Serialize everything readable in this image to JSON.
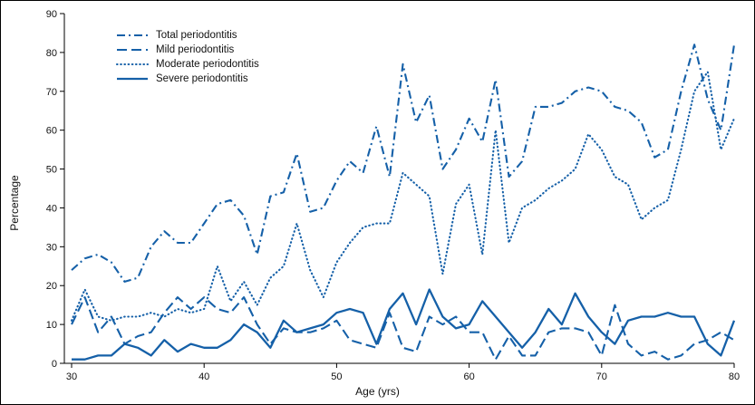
{
  "figure": {
    "background": "#ffffff",
    "border_color": "#000000"
  },
  "chart_data": {
    "type": "line",
    "title": "",
    "xlabel": "Age (yrs)",
    "ylabel": "Percentage",
    "xlim": [
      30,
      80
    ],
    "ylim": [
      0,
      90
    ],
    "x_start": 30,
    "x_step": 1,
    "x_ticks": [
      30,
      40,
      50,
      60,
      70,
      80
    ],
    "y_ticks": [
      0,
      10,
      20,
      30,
      40,
      50,
      60,
      70,
      80,
      90
    ],
    "grid": false,
    "legend_position": "upper-left-inside",
    "color": "#1560a8",
    "series": [
      {
        "key": "total",
        "name": "Total periodontitis",
        "line_style": "dashdot",
        "values": [
          24,
          27,
          28,
          26,
          21,
          22,
          30,
          34,
          31,
          31,
          36,
          41,
          42,
          38,
          28,
          43,
          44,
          54,
          39,
          40,
          47,
          52,
          49,
          61,
          48,
          77,
          62,
          69,
          50,
          55,
          63,
          57,
          73,
          48,
          52,
          66,
          66,
          67,
          70,
          71,
          70,
          66,
          65,
          62,
          53,
          55,
          70,
          82,
          68,
          60,
          82
        ]
      },
      {
        "key": "mild",
        "name": "Mild periodontitis",
        "line_style": "dash",
        "values": [
          10,
          17,
          8,
          12,
          5,
          7,
          8,
          13,
          17,
          14,
          17,
          14,
          13,
          17,
          10,
          5,
          9,
          8,
          8,
          9,
          11,
          6,
          5,
          4,
          13,
          4,
          3,
          12,
          10,
          12,
          8,
          8,
          1,
          7,
          2,
          2,
          8,
          9,
          9,
          8,
          2,
          15,
          5,
          2,
          3,
          1,
          2,
          5,
          6,
          8,
          6
        ]
      },
      {
        "key": "moderate",
        "name": "Moderate periodontitis",
        "line_style": "dot",
        "values": [
          11,
          19,
          12,
          11,
          12,
          12,
          13,
          12,
          14,
          13,
          14,
          25,
          16,
          21,
          15,
          22,
          25,
          36,
          24,
          17,
          26,
          31,
          35,
          36,
          36,
          49,
          46,
          43,
          23,
          41,
          46,
          28,
          60,
          31,
          40,
          42,
          45,
          47,
          50,
          59,
          55,
          48,
          46,
          37,
          40,
          42,
          55,
          70,
          75,
          55,
          63
        ]
      },
      {
        "key": "severe",
        "name": "Severe periodontitis",
        "line_style": "solid",
        "values": [
          1,
          1,
          2,
          2,
          5,
          4,
          2,
          6,
          3,
          5,
          4,
          4,
          6,
          10,
          8,
          4,
          11,
          8,
          9,
          10,
          13,
          14,
          13,
          5,
          14,
          18,
          10,
          19,
          12,
          9,
          10,
          16,
          12,
          8,
          4,
          8,
          14,
          10,
          18,
          12,
          8,
          5,
          11,
          12,
          12,
          13,
          12,
          12,
          5,
          2,
          11
        ]
      }
    ]
  }
}
